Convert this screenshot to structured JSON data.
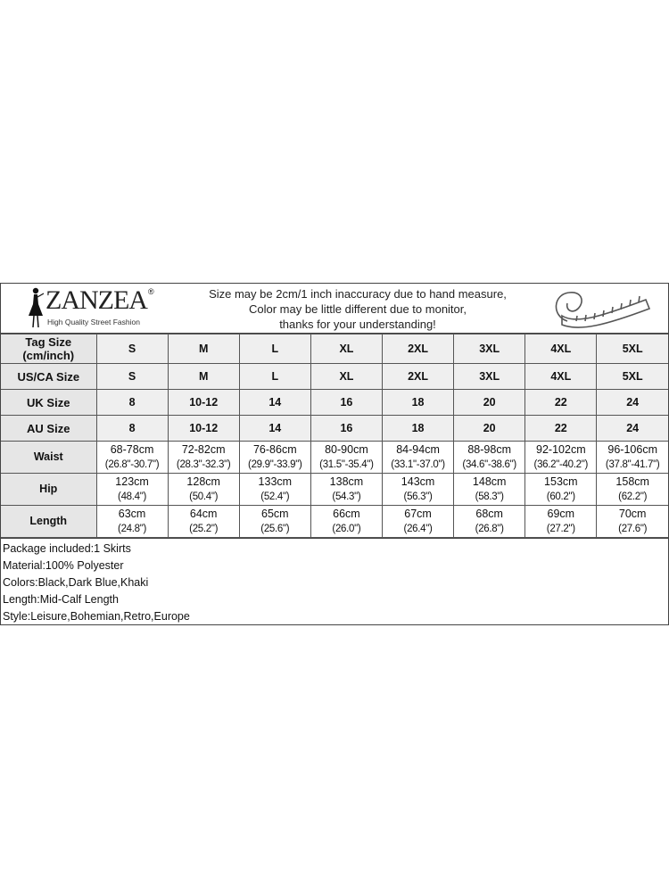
{
  "brand": {
    "name": "ZANZEA",
    "tagline": "High Quality Street Fashion"
  },
  "notice": [
    "Size may be 2cm/1 inch inaccuracy due to hand measure,",
    "Color may be little different due to monitor,",
    "thanks for your understanding!"
  ],
  "icons": {
    "logo": "fashion-figure-logo",
    "tape": "measuring-tape-icon"
  },
  "size_rows": [
    {
      "label": "Tag Size\n(cm/inch)",
      "values": [
        "S",
        "M",
        "L",
        "XL",
        "2XL",
        "3XL",
        "4XL",
        "5XL"
      ]
    },
    {
      "label": "US/CA Size",
      "values": [
        "S",
        "M",
        "L",
        "XL",
        "2XL",
        "3XL",
        "4XL",
        "5XL"
      ]
    },
    {
      "label": "UK Size",
      "values": [
        "8",
        "10-12",
        "14",
        "16",
        "18",
        "20",
        "22",
        "24"
      ]
    },
    {
      "label": "AU Size",
      "values": [
        "8",
        "10-12",
        "14",
        "16",
        "18",
        "20",
        "22",
        "24"
      ]
    }
  ],
  "measure_rows": [
    {
      "label": "Waist",
      "cm": [
        "68-78cm",
        "72-82cm",
        "76-86cm",
        "80-90cm",
        "84-94cm",
        "88-98cm",
        "92-102cm",
        "96-106cm"
      ],
      "inch": [
        "(26.8\"-30.7\")",
        "(28.3\"-32.3\")",
        "(29.9\"-33.9\")",
        "(31.5\"-35.4\")",
        "(33.1\"-37.0\")",
        "(34.6\"-38.6\")",
        "(36.2\"-40.2\")",
        "(37.8\"-41.7\")"
      ]
    },
    {
      "label": "Hip",
      "cm": [
        "123cm",
        "128cm",
        "133cm",
        "138cm",
        "143cm",
        "148cm",
        "153cm",
        "158cm"
      ],
      "inch": [
        "(48.4\")",
        "(50.4\")",
        "(52.4\")",
        "(54.3\")",
        "(56.3\")",
        "(58.3\")",
        "(60.2\")",
        "(62.2\")"
      ]
    },
    {
      "label": "Length",
      "cm": [
        "63cm",
        "64cm",
        "65cm",
        "66cm",
        "67cm",
        "68cm",
        "69cm",
        "70cm"
      ],
      "inch": [
        "(24.8\")",
        "(25.2\")",
        "(25.6\")",
        "(26.0\")",
        "(26.4\")",
        "(26.8\")",
        "(27.2\")",
        "(27.6\")"
      ]
    }
  ],
  "notes": [
    "Package included:1 Skirts",
    "Material:100% Polyester",
    "Colors:Black,Dark Blue,Khaki",
    "Length:Mid-Calf Length",
    "Style:Leisure,Bohemian,Retro,Europe"
  ]
}
